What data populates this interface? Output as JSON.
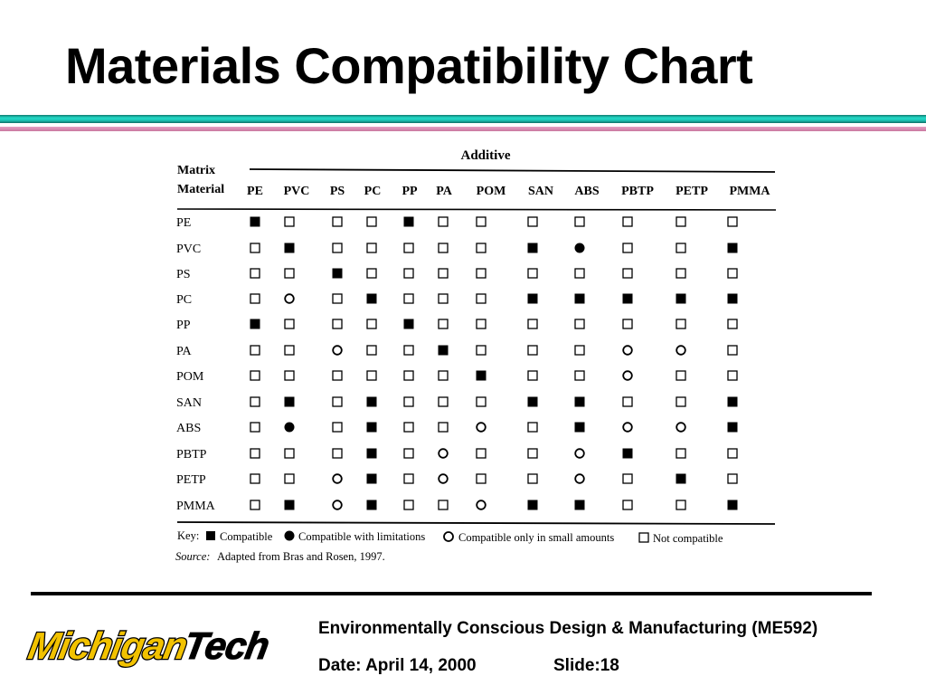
{
  "slide": {
    "title": "Materials Compatibility Chart"
  },
  "colors": {
    "teal_rule": "#1ec7b8",
    "pink_rule": "#d88ab2",
    "logo_yellow": "#f2c200",
    "logo_black": "#000000"
  },
  "table": {
    "header_additive": "Additive",
    "matrix_label_line1": "Matrix",
    "matrix_label_line2": "Material",
    "columns": [
      "PE",
      "PVC",
      "PS",
      "PC",
      "PP",
      "PA",
      "POM",
      "SAN",
      "ABS",
      "PBTP",
      "PETP",
      "PMMA"
    ],
    "rows": [
      {
        "label": "PE",
        "cells": [
          "C",
          "N",
          "N",
          "N",
          "C",
          "N",
          "N",
          "N",
          "N",
          "N",
          "N",
          "N"
        ]
      },
      {
        "label": "PVC",
        "cells": [
          "N",
          "C",
          "N",
          "N",
          "N",
          "N",
          "N",
          "C",
          "L",
          "N",
          "N",
          "C"
        ]
      },
      {
        "label": "PS",
        "cells": [
          "N",
          "N",
          "C",
          "N",
          "N",
          "N",
          "N",
          "N",
          "N",
          "N",
          "N",
          "N"
        ]
      },
      {
        "label": "PC",
        "cells": [
          "N",
          "S",
          "N",
          "C",
          "N",
          "N",
          "N",
          "C",
          "C",
          "C",
          "C",
          "C"
        ]
      },
      {
        "label": "PP",
        "cells": [
          "C",
          "N",
          "N",
          "N",
          "C",
          "N",
          "N",
          "N",
          "N",
          "N",
          "N",
          "N"
        ]
      },
      {
        "label": "PA",
        "cells": [
          "N",
          "N",
          "S",
          "N",
          "N",
          "C",
          "N",
          "N",
          "N",
          "S",
          "S",
          "N"
        ]
      },
      {
        "label": "POM",
        "cells": [
          "N",
          "N",
          "N",
          "N",
          "N",
          "N",
          "C",
          "N",
          "N",
          "S",
          "N",
          "N"
        ]
      },
      {
        "label": "SAN",
        "cells": [
          "N",
          "C",
          "N",
          "C",
          "N",
          "N",
          "N",
          "C",
          "C",
          "N",
          "N",
          "C"
        ]
      },
      {
        "label": "ABS",
        "cells": [
          "N",
          "L",
          "N",
          "C",
          "N",
          "N",
          "S",
          "N",
          "C",
          "S",
          "S",
          "C"
        ]
      },
      {
        "label": "PBTP",
        "cells": [
          "N",
          "N",
          "N",
          "C",
          "N",
          "S",
          "N",
          "N",
          "S",
          "C",
          "N",
          "N"
        ]
      },
      {
        "label": "PETP",
        "cells": [
          "N",
          "N",
          "S",
          "C",
          "N",
          "S",
          "N",
          "N",
          "S",
          "N",
          "C",
          "N"
        ]
      },
      {
        "label": "PMMA",
        "cells": [
          "N",
          "C",
          "S",
          "C",
          "N",
          "N",
          "S",
          "C",
          "C",
          "N",
          "N",
          "C"
        ]
      }
    ],
    "key": {
      "label": "Key:",
      "compatible": "Compatible",
      "limitations": "Compatible with limitations",
      "small_amounts": "Compatible only in small amounts",
      "not_compatible": "Not compatible"
    },
    "source_label": "Source:",
    "source_text": "Adapted from Bras and Rosen, 1997."
  },
  "footer": {
    "logo_part1": "Michigan",
    "logo_part2": "Tech",
    "course": "Environmentally Conscious Design & Manufacturing (ME592)",
    "date": "Date: April 14, 2000",
    "slide": "Slide:18"
  }
}
